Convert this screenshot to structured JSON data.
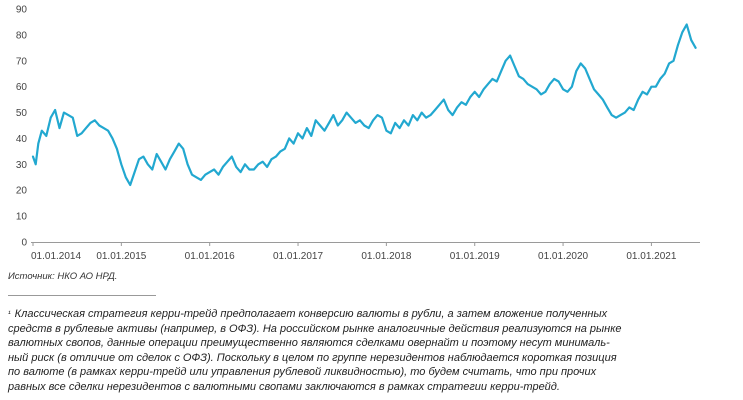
{
  "chart_data": {
    "type": "line",
    "title": "",
    "xlabel": "",
    "ylabel": "",
    "ylim": [
      0,
      90
    ],
    "y_ticks": [
      0,
      10,
      20,
      30,
      40,
      50,
      60,
      70,
      80,
      90
    ],
    "x_tick_labels": [
      "01.01.2014",
      "01.01.2015",
      "01.01.2016",
      "01.01.2017",
      "01.01.2018",
      "01.01.2019",
      "01.01.2020",
      "01.01.2021"
    ],
    "x_tick_years": [
      2014,
      2015,
      2016,
      2017,
      2018,
      2019,
      2020,
      2021
    ],
    "xlim": [
      2014.0,
      2021.55
    ],
    "grid": false,
    "series_color": "#22a8d0",
    "series": [
      {
        "x": [
          2014.0,
          2014.03,
          2014.06,
          2014.1,
          2014.15,
          2014.2,
          2014.25,
          2014.3,
          2014.35,
          2014.4,
          2014.45,
          2014.5,
          2014.55,
          2014.6,
          2014.65,
          2014.7,
          2014.75,
          2014.8,
          2014.85,
          2014.9,
          2014.95,
          2015.0,
          2015.05,
          2015.1,
          2015.15,
          2015.2,
          2015.25,
          2015.3,
          2015.35,
          2015.4,
          2015.45,
          2015.5,
          2015.55,
          2015.6,
          2015.65,
          2015.7,
          2015.75,
          2015.8,
          2015.85,
          2015.9,
          2015.95,
          2016.0,
          2016.05,
          2016.1,
          2016.15,
          2016.2,
          2016.25,
          2016.3,
          2016.35,
          2016.4,
          2016.45,
          2016.5,
          2016.55,
          2016.6,
          2016.65,
          2016.7,
          2016.75,
          2016.8,
          2016.85,
          2016.9,
          2016.95,
          2017.0,
          2017.05,
          2017.1,
          2017.15,
          2017.2,
          2017.25,
          2017.3,
          2017.35,
          2017.4,
          2017.45,
          2017.5,
          2017.55,
          2017.6,
          2017.65,
          2017.7,
          2017.75,
          2017.8,
          2017.85,
          2017.9,
          2017.95,
          2018.0,
          2018.05,
          2018.1,
          2018.15,
          2018.2,
          2018.25,
          2018.3,
          2018.35,
          2018.4,
          2018.45,
          2018.5,
          2018.55,
          2018.6,
          2018.65,
          2018.7,
          2018.75,
          2018.8,
          2018.85,
          2018.9,
          2018.95,
          2019.0,
          2019.05,
          2019.1,
          2019.15,
          2019.2,
          2019.25,
          2019.3,
          2019.35,
          2019.4,
          2019.45,
          2019.5,
          2019.55,
          2019.6,
          2019.65,
          2019.7,
          2019.75,
          2019.8,
          2019.85,
          2019.9,
          2019.95,
          2020.0,
          2020.05,
          2020.1,
          2020.15,
          2020.2,
          2020.25,
          2020.3,
          2020.35,
          2020.4,
          2020.45,
          2020.5,
          2020.55,
          2020.6,
          2020.65,
          2020.7,
          2020.75,
          2020.8,
          2020.85,
          2020.9,
          2020.95,
          2021.0,
          2021.05,
          2021.1,
          2021.15,
          2021.2,
          2021.25,
          2021.3,
          2021.35,
          2021.4,
          2021.45,
          2021.5
        ],
        "values": [
          33,
          30,
          38,
          43,
          41,
          48,
          51,
          44,
          50,
          49,
          48,
          41,
          42,
          44,
          46,
          47,
          45,
          44,
          43,
          40,
          36,
          30,
          25,
          22,
          27,
          32,
          33,
          30,
          28,
          34,
          31,
          28,
          32,
          35,
          38,
          36,
          30,
          26,
          25,
          24,
          26,
          27,
          28,
          26,
          29,
          31,
          33,
          29,
          27,
          30,
          28,
          28,
          30,
          31,
          29,
          32,
          33,
          35,
          36,
          40,
          38,
          42,
          40,
          44,
          41,
          47,
          45,
          43,
          46,
          49,
          45,
          47,
          50,
          48,
          46,
          47,
          45,
          44,
          47,
          49,
          48,
          43,
          42,
          46,
          44,
          47,
          45,
          49,
          47,
          50,
          48,
          49,
          51,
          53,
          55,
          51,
          49,
          52,
          54,
          53,
          56,
          58,
          56,
          59,
          61,
          63,
          62,
          66,
          70,
          72,
          68,
          64,
          63,
          61,
          60,
          59,
          57,
          58,
          61,
          63,
          62,
          59,
          58,
          60,
          66,
          69,
          67,
          63,
          59,
          57,
          55,
          52,
          49,
          48,
          49,
          50,
          52,
          51,
          55,
          58,
          57,
          60,
          60,
          63,
          65,
          69,
          70,
          76,
          81,
          84,
          78,
          75
        ]
      }
    ]
  },
  "source_text": "Источник: НКО АО НРД.",
  "footnote": {
    "marker": "¹",
    "lines": [
      "Классическая стратегия керри-трейд предполагает конверсию валюты в рубли, а затем вложение полученных",
      "средств в рублевые активы (например, в ОФЗ). На российском рынке аналогичные действия реализуются на рынке",
      "валютных свопов, данные операции преимущественно являются сделками овернайт и поэтому несут минималь-",
      "ный риск (в отличие от сделок с ОФЗ). Поскольку в целом по группе нерезидентов наблюдается короткая позиция",
      "по валюте (в рамках керри-трейд или управления рублевой ликвидностью), то будем считать, что при прочих",
      "равных все сделки нерезидентов с валютными свопами заключаются в рамках стратегии керри-трейд."
    ]
  }
}
